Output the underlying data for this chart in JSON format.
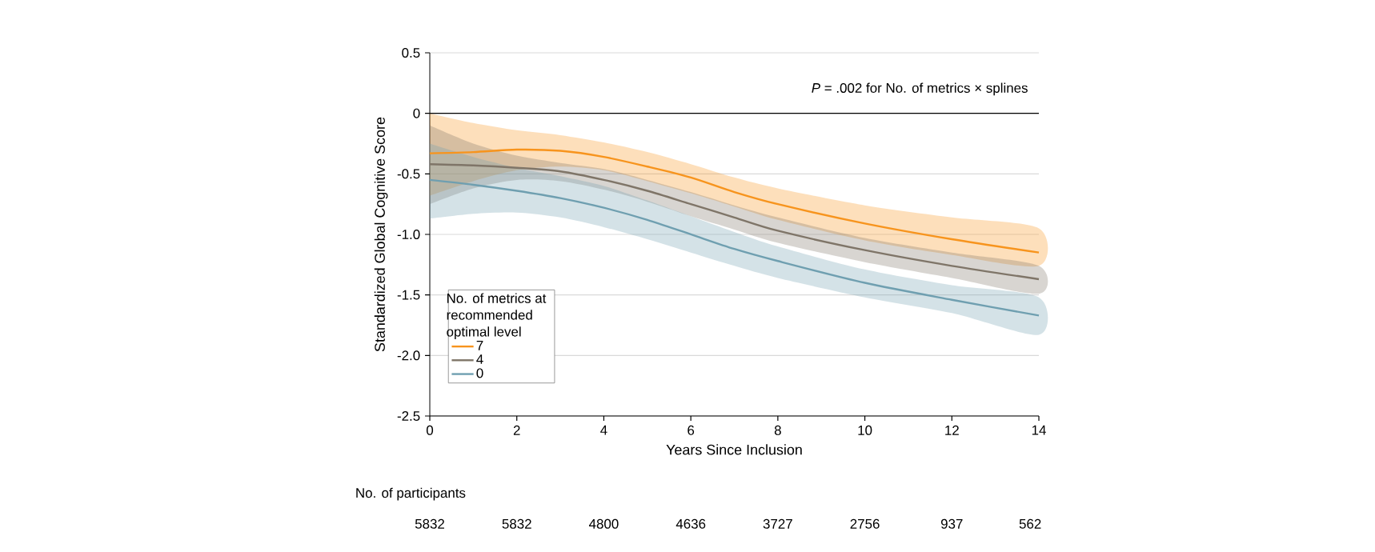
{
  "chart_data": {
    "type": "line",
    "xlabel": "Years Since Inclusion",
    "ylabel": "Standardized Global Cognitive Score",
    "legend_title": "No. of metrics at recommended optimal level",
    "annotations": [
      "*P* = .002 for No. of metrics × splines",
      "No. of participants",
      "5832",
      "5832",
      "4800",
      "4636",
      "3727",
      "2756",
      "937",
      "562"
    ],
    "xlim": [
      0,
      14
    ],
    "xticks": [
      0,
      2,
      4,
      6,
      8,
      10,
      12,
      14
    ],
    "ylim": [
      -2.5,
      0.5
    ],
    "yticks": [
      {
        "value": 0.5,
        "label": "0.5"
      },
      {
        "value": 0,
        "label": "0"
      },
      {
        "value": -0.5,
        "label": "-0.5"
      },
      {
        "value": -1.0,
        "label": "-1.0"
      },
      {
        "value": -1.5,
        "label": "-1.5"
      },
      {
        "value": -2.0,
        "label": "-2.0"
      },
      {
        "value": -2.5,
        "label": "-2.5"
      }
    ],
    "grid": "y",
    "legend": "bottom left",
    "marker": "none",
    "line_style": "solid",
    "ref_lines": [
      {
        "axis": "y",
        "value": 0,
        "color": "#000000"
      }
    ],
    "series": [
      {
        "name": "7",
        "color": "#f7941d",
        "x": [
          0,
          1,
          2,
          3,
          4,
          5,
          6,
          7,
          8,
          10,
          12,
          14
        ],
        "values": [
          -0.33,
          -0.32,
          -0.3,
          -0.31,
          -0.36,
          -0.44,
          -0.53,
          -0.65,
          -0.75,
          -0.91,
          -1.04,
          -1.15
        ],
        "upper": [
          0.0,
          -0.08,
          -0.14,
          -0.18,
          -0.24,
          -0.32,
          -0.42,
          -0.53,
          -0.62,
          -0.76,
          -0.86,
          -0.95
        ],
        "lower": [
          -0.68,
          -0.56,
          -0.47,
          -0.44,
          -0.47,
          -0.56,
          -0.66,
          -0.77,
          -0.88,
          -1.05,
          -1.17,
          -1.26
        ]
      },
      {
        "name": "4",
        "color": "#7f7568",
        "x": [
          0,
          1,
          2,
          3,
          4,
          5,
          6,
          7,
          8,
          10,
          12,
          14
        ],
        "values": [
          -0.42,
          -0.43,
          -0.45,
          -0.48,
          -0.55,
          -0.64,
          -0.75,
          -0.86,
          -0.97,
          -1.13,
          -1.26,
          -1.37
        ],
        "upper": [
          -0.1,
          -0.25,
          -0.35,
          -0.41,
          -0.46,
          -0.55,
          -0.65,
          -0.76,
          -0.86,
          -1.03,
          -1.15,
          -1.26
        ],
        "lower": [
          -0.75,
          -0.62,
          -0.55,
          -0.56,
          -0.63,
          -0.73,
          -0.85,
          -0.96,
          -1.07,
          -1.23,
          -1.36,
          -1.49
        ]
      },
      {
        "name": "0",
        "color": "#6f9fb0",
        "x": [
          0,
          1,
          2,
          3,
          4,
          5,
          6,
          7,
          8,
          10,
          12,
          14
        ],
        "values": [
          -0.55,
          -0.59,
          -0.64,
          -0.7,
          -0.78,
          -0.88,
          -1.0,
          -1.12,
          -1.22,
          -1.4,
          -1.54,
          -1.67
        ],
        "upper": [
          -0.25,
          -0.36,
          -0.45,
          -0.52,
          -0.6,
          -0.72,
          -0.85,
          -0.98,
          -1.1,
          -1.29,
          -1.42,
          -1.52
        ],
        "lower": [
          -0.87,
          -0.83,
          -0.82,
          -0.86,
          -0.94,
          -1.04,
          -1.15,
          -1.26,
          -1.36,
          -1.52,
          -1.65,
          -1.83
        ]
      }
    ]
  }
}
